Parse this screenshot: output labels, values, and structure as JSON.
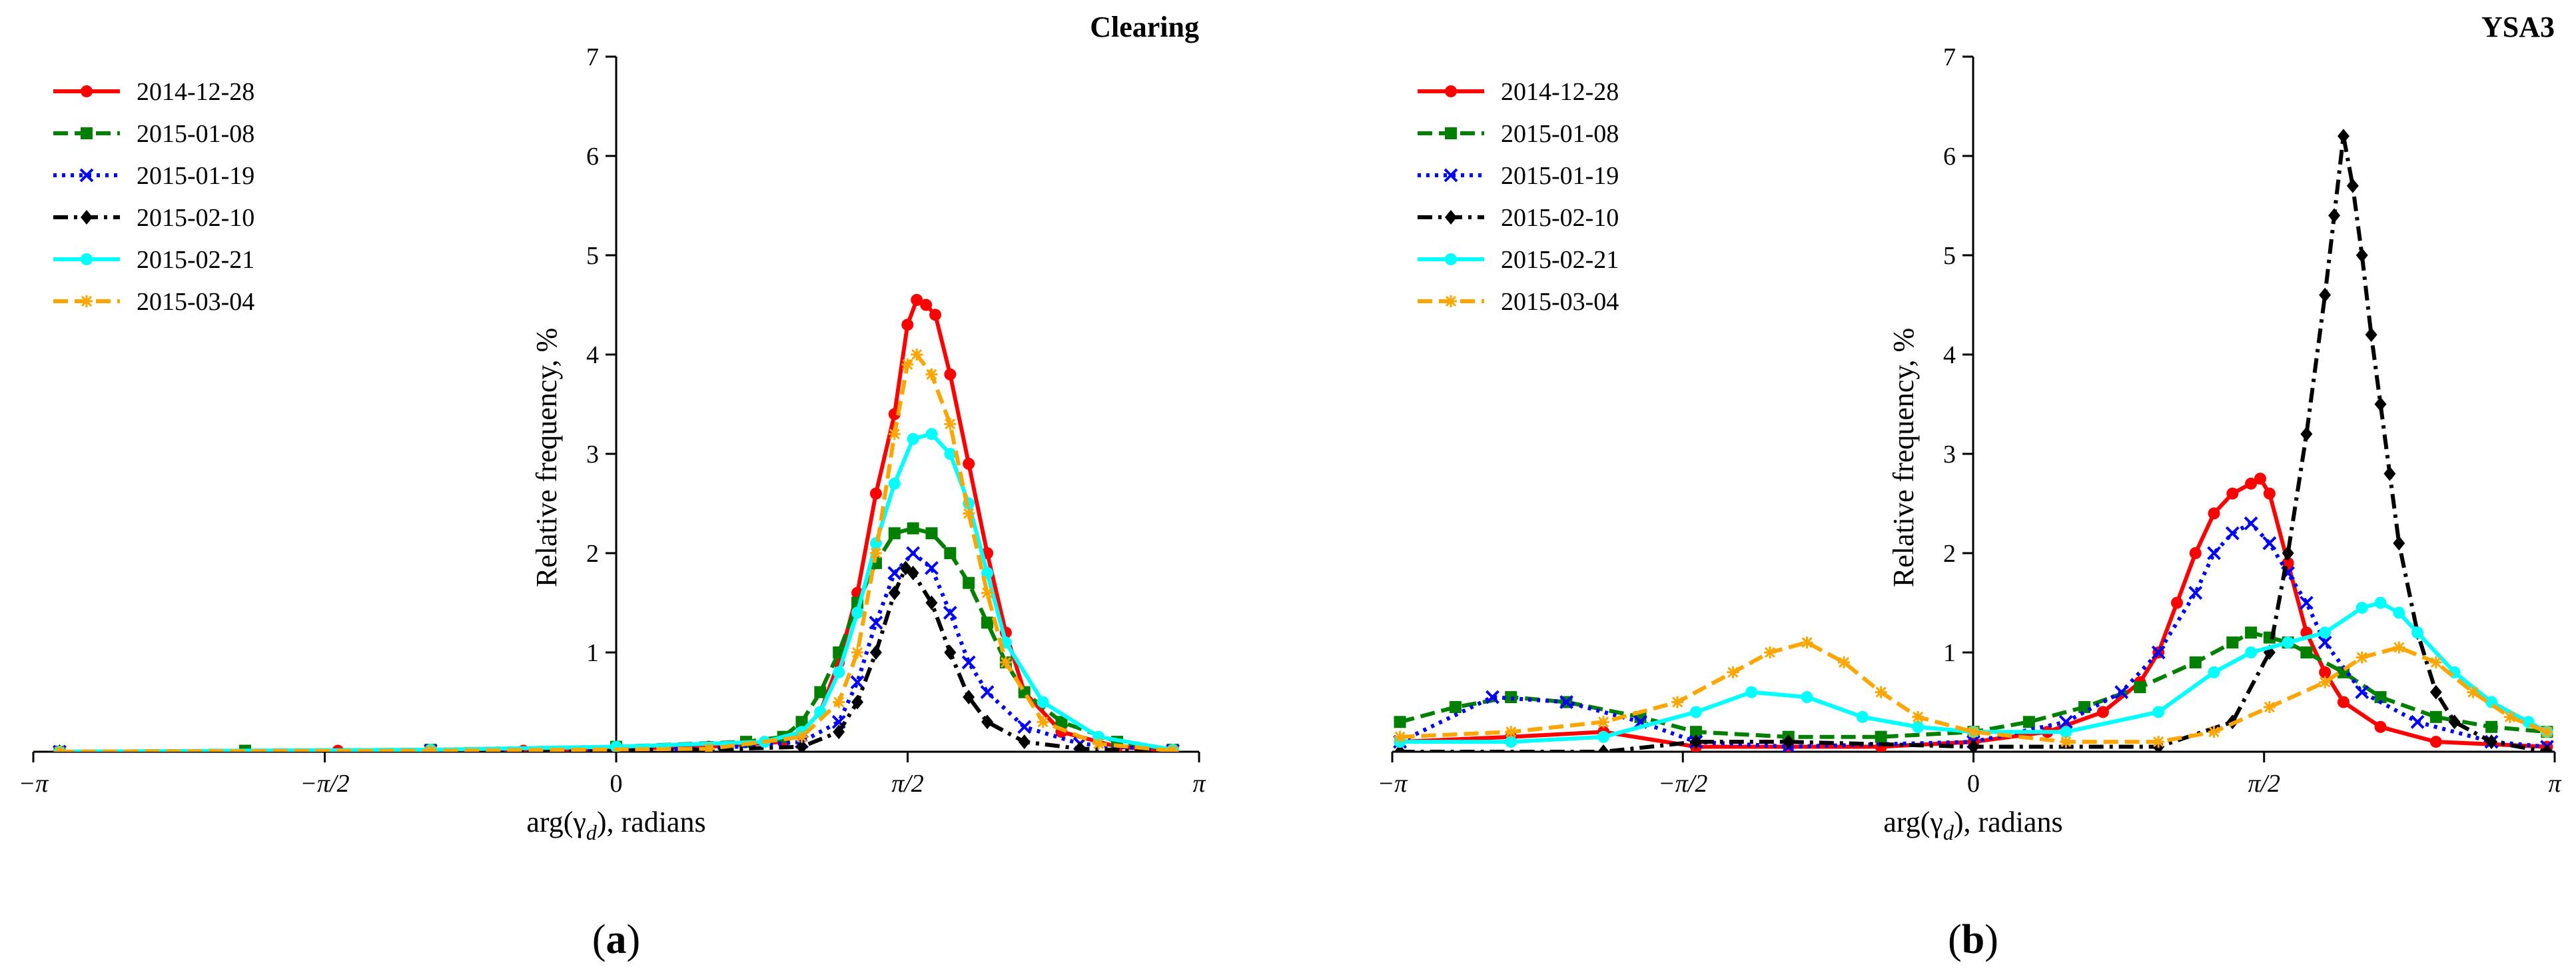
{
  "panels": [
    {
      "label_prefix": "(",
      "label_letter": "a",
      "label_suffix": ")"
    },
    {
      "label_prefix": "(",
      "label_letter": "b",
      "label_suffix": ")"
    }
  ],
  "chart_data": [
    {
      "type": "line",
      "title": "Clearing",
      "xlabel": "arg(γ",
      "xlabel_sub": "d",
      "xlabel_tail": "), radians",
      "ylabel": "Relative frequency, %",
      "xlim": [
        -3.1416,
        3.1416
      ],
      "ylim": [
        0,
        7
      ],
      "xticks": [
        {
          "value": -3.1416,
          "label": "−π"
        },
        {
          "value": -1.5708,
          "label": "−π/2"
        },
        {
          "value": 0,
          "label": "0"
        },
        {
          "value": 1.5708,
          "label": "π/2"
        },
        {
          "value": 3.1416,
          "label": "π"
        }
      ],
      "yticks": [
        1,
        2,
        3,
        4,
        5,
        6,
        7
      ],
      "legend_position": "top-left",
      "series": [
        {
          "name": "2014-12-28",
          "color": "#ff0000",
          "dash": "solid",
          "marker": "circle",
          "x": [
            -3.0,
            -2.0,
            -1.5,
            -0.5,
            0.5,
            0.9,
            1.0,
            1.1,
            1.2,
            1.3,
            1.4,
            1.5,
            1.57,
            1.62,
            1.67,
            1.72,
            1.8,
            1.9,
            2.0,
            2.1,
            2.2,
            2.4,
            2.7,
            3.0
          ],
          "y": [
            0.0,
            0.0,
            0.01,
            0.01,
            0.05,
            0.1,
            0.2,
            0.4,
            0.9,
            1.6,
            2.6,
            3.4,
            4.3,
            4.55,
            4.5,
            4.4,
            3.8,
            2.9,
            2.0,
            1.2,
            0.6,
            0.2,
            0.05,
            0.01
          ]
        },
        {
          "name": "2015-01-08",
          "color": "#008000",
          "dash": "dashed",
          "marker": "square",
          "x": [
            -3.0,
            -2.0,
            -1.0,
            0.0,
            0.7,
            0.9,
            1.0,
            1.1,
            1.2,
            1.3,
            1.4,
            1.5,
            1.6,
            1.7,
            1.8,
            1.9,
            2.0,
            2.1,
            2.2,
            2.4,
            2.7,
            3.0
          ],
          "y": [
            0.0,
            0.01,
            0.02,
            0.05,
            0.1,
            0.15,
            0.3,
            0.6,
            1.0,
            1.5,
            1.9,
            2.2,
            2.25,
            2.2,
            2.0,
            1.7,
            1.3,
            0.9,
            0.6,
            0.3,
            0.1,
            0.02
          ]
        },
        {
          "name": "2015-01-19",
          "color": "#0000ff",
          "dash": "dotted",
          "marker": "x",
          "x": [
            -3.0,
            -1.0,
            0.5,
            1.0,
            1.2,
            1.3,
            1.4,
            1.5,
            1.6,
            1.7,
            1.8,
            1.9,
            2.0,
            2.2,
            2.5,
            3.0
          ],
          "y": [
            0.0,
            0.01,
            0.03,
            0.1,
            0.3,
            0.7,
            1.3,
            1.8,
            2.0,
            1.85,
            1.4,
            0.9,
            0.6,
            0.25,
            0.08,
            0.01
          ]
        },
        {
          "name": "2015-02-10",
          "color": "#000000",
          "dash": "dashdot",
          "marker": "diamond",
          "x": [
            -3.0,
            -1.0,
            0.5,
            1.0,
            1.2,
            1.3,
            1.4,
            1.5,
            1.56,
            1.6,
            1.7,
            1.8,
            1.9,
            2.0,
            2.2,
            2.5,
            3.0
          ],
          "y": [
            0.0,
            0.0,
            0.02,
            0.05,
            0.2,
            0.5,
            1.0,
            1.6,
            1.85,
            1.8,
            1.5,
            1.0,
            0.55,
            0.3,
            0.1,
            0.03,
            0.0
          ]
        },
        {
          "name": "2015-02-21",
          "color": "#00ffff",
          "dash": "solid",
          "marker": "circle",
          "x": [
            -3.0,
            -1.0,
            0.0,
            0.8,
            1.0,
            1.1,
            1.2,
            1.3,
            1.4,
            1.5,
            1.6,
            1.7,
            1.8,
            1.9,
            2.0,
            2.1,
            2.3,
            2.6,
            3.0
          ],
          "y": [
            0.0,
            0.02,
            0.05,
            0.1,
            0.2,
            0.4,
            0.8,
            1.4,
            2.1,
            2.7,
            3.15,
            3.2,
            3.0,
            2.5,
            1.8,
            1.1,
            0.5,
            0.15,
            0.02
          ]
        },
        {
          "name": "2015-03-04",
          "color": "#ffa500",
          "dash": "dashed",
          "marker": "star",
          "x": [
            -3.0,
            -1.0,
            0.5,
            1.0,
            1.2,
            1.3,
            1.4,
            1.5,
            1.57,
            1.62,
            1.7,
            1.8,
            1.9,
            2.0,
            2.1,
            2.3,
            2.6,
            3.0
          ],
          "y": [
            0.0,
            0.01,
            0.03,
            0.15,
            0.5,
            1.0,
            2.0,
            3.2,
            3.9,
            4.0,
            3.8,
            3.3,
            2.4,
            1.6,
            0.9,
            0.3,
            0.08,
            0.01
          ]
        }
      ]
    },
    {
      "type": "line",
      "title": "YSA3",
      "xlabel": "arg(γ",
      "xlabel_sub": "d",
      "xlabel_tail": "), radians",
      "ylabel": "Relative frequency, %",
      "xlim": [
        -3.1416,
        3.1416
      ],
      "ylim": [
        0,
        7
      ],
      "xticks": [
        {
          "value": -3.1416,
          "label": "−π"
        },
        {
          "value": -1.5708,
          "label": "−π/2"
        },
        {
          "value": 0,
          "label": "0"
        },
        {
          "value": 1.5708,
          "label": "π/2"
        },
        {
          "value": 3.1416,
          "label": "π"
        }
      ],
      "yticks": [
        1,
        2,
        3,
        4,
        5,
        6,
        7
      ],
      "legend_position": "top-left",
      "series": [
        {
          "name": "2014-12-28",
          "color": "#ff0000",
          "dash": "solid",
          "marker": "circle",
          "x": [
            -3.1,
            -2.5,
            -2.0,
            -1.5,
            -1.0,
            -0.5,
            0.0,
            0.4,
            0.7,
            0.9,
            1.0,
            1.1,
            1.2,
            1.3,
            1.4,
            1.5,
            1.55,
            1.6,
            1.7,
            1.8,
            1.9,
            2.0,
            2.2,
            2.5,
            3.1
          ],
          "y": [
            0.1,
            0.15,
            0.2,
            0.05,
            0.05,
            0.05,
            0.1,
            0.2,
            0.4,
            0.7,
            1.0,
            1.5,
            2.0,
            2.4,
            2.6,
            2.7,
            2.75,
            2.6,
            1.9,
            1.2,
            0.8,
            0.5,
            0.25,
            0.1,
            0.05
          ]
        },
        {
          "name": "2015-01-08",
          "color": "#008000",
          "dash": "dashed",
          "marker": "square",
          "x": [
            -3.1,
            -2.8,
            -2.5,
            -2.2,
            -1.8,
            -1.5,
            -1.0,
            -0.5,
            0.0,
            0.3,
            0.6,
            0.9,
            1.2,
            1.4,
            1.5,
            1.6,
            1.7,
            1.8,
            2.0,
            2.2,
            2.5,
            2.8,
            3.1
          ],
          "y": [
            0.3,
            0.45,
            0.55,
            0.5,
            0.35,
            0.2,
            0.15,
            0.15,
            0.2,
            0.3,
            0.45,
            0.65,
            0.9,
            1.1,
            1.2,
            1.15,
            1.1,
            1.0,
            0.8,
            0.55,
            0.35,
            0.25,
            0.2
          ]
        },
        {
          "name": "2015-01-19",
          "color": "#0000ff",
          "dash": "dotted",
          "marker": "x",
          "x": [
            -3.1,
            -2.6,
            -2.2,
            -1.8,
            -1.5,
            -1.0,
            0.0,
            0.5,
            0.8,
            1.0,
            1.2,
            1.3,
            1.4,
            1.5,
            1.6,
            1.7,
            1.8,
            1.9,
            2.1,
            2.4,
            2.8,
            3.1
          ],
          "y": [
            0.1,
            0.55,
            0.5,
            0.3,
            0.1,
            0.05,
            0.1,
            0.3,
            0.6,
            1.0,
            1.6,
            2.0,
            2.2,
            2.3,
            2.1,
            1.8,
            1.5,
            1.1,
            0.6,
            0.3,
            0.1,
            0.05
          ]
        },
        {
          "name": "2015-02-10",
          "color": "#000000",
          "dash": "dashdot",
          "marker": "diamond",
          "x": [
            -3.1,
            -2.0,
            -1.5,
            -1.0,
            0.0,
            1.0,
            1.4,
            1.6,
            1.7,
            1.8,
            1.9,
            1.95,
            2.0,
            2.05,
            2.1,
            2.15,
            2.2,
            2.25,
            2.3,
            2.4,
            2.5,
            2.6,
            2.8,
            3.1
          ],
          "y": [
            0.0,
            0.0,
            0.1,
            0.1,
            0.05,
            0.05,
            0.3,
            1.0,
            2.0,
            3.2,
            4.6,
            5.4,
            6.2,
            5.7,
            5.0,
            4.2,
            3.5,
            2.8,
            2.1,
            1.2,
            0.6,
            0.3,
            0.1,
            0.0
          ]
        },
        {
          "name": "2015-02-21",
          "color": "#00ffff",
          "dash": "solid",
          "marker": "circle",
          "x": [
            -3.1,
            -2.5,
            -2.0,
            -1.5,
            -1.2,
            -0.9,
            -0.6,
            -0.3,
            0.0,
            0.5,
            1.0,
            1.3,
            1.5,
            1.7,
            1.9,
            2.1,
            2.2,
            2.3,
            2.4,
            2.6,
            2.8,
            3.0,
            3.1
          ],
          "y": [
            0.1,
            0.1,
            0.15,
            0.4,
            0.6,
            0.55,
            0.35,
            0.25,
            0.2,
            0.2,
            0.4,
            0.8,
            1.0,
            1.1,
            1.2,
            1.45,
            1.5,
            1.4,
            1.2,
            0.8,
            0.5,
            0.3,
            0.2
          ]
        },
        {
          "name": "2015-03-04",
          "color": "#ffa500",
          "dash": "dashed",
          "marker": "star",
          "x": [
            -3.1,
            -2.5,
            -2.0,
            -1.6,
            -1.3,
            -1.1,
            -0.9,
            -0.7,
            -0.5,
            -0.3,
            0.0,
            0.5,
            1.0,
            1.3,
            1.6,
            1.9,
            2.1,
            2.3,
            2.5,
            2.7,
            2.9,
            3.1
          ],
          "y": [
            0.15,
            0.2,
            0.3,
            0.5,
            0.8,
            1.0,
            1.1,
            0.9,
            0.6,
            0.35,
            0.2,
            0.1,
            0.1,
            0.2,
            0.45,
            0.7,
            0.95,
            1.05,
            0.9,
            0.6,
            0.35,
            0.2
          ]
        }
      ]
    }
  ]
}
